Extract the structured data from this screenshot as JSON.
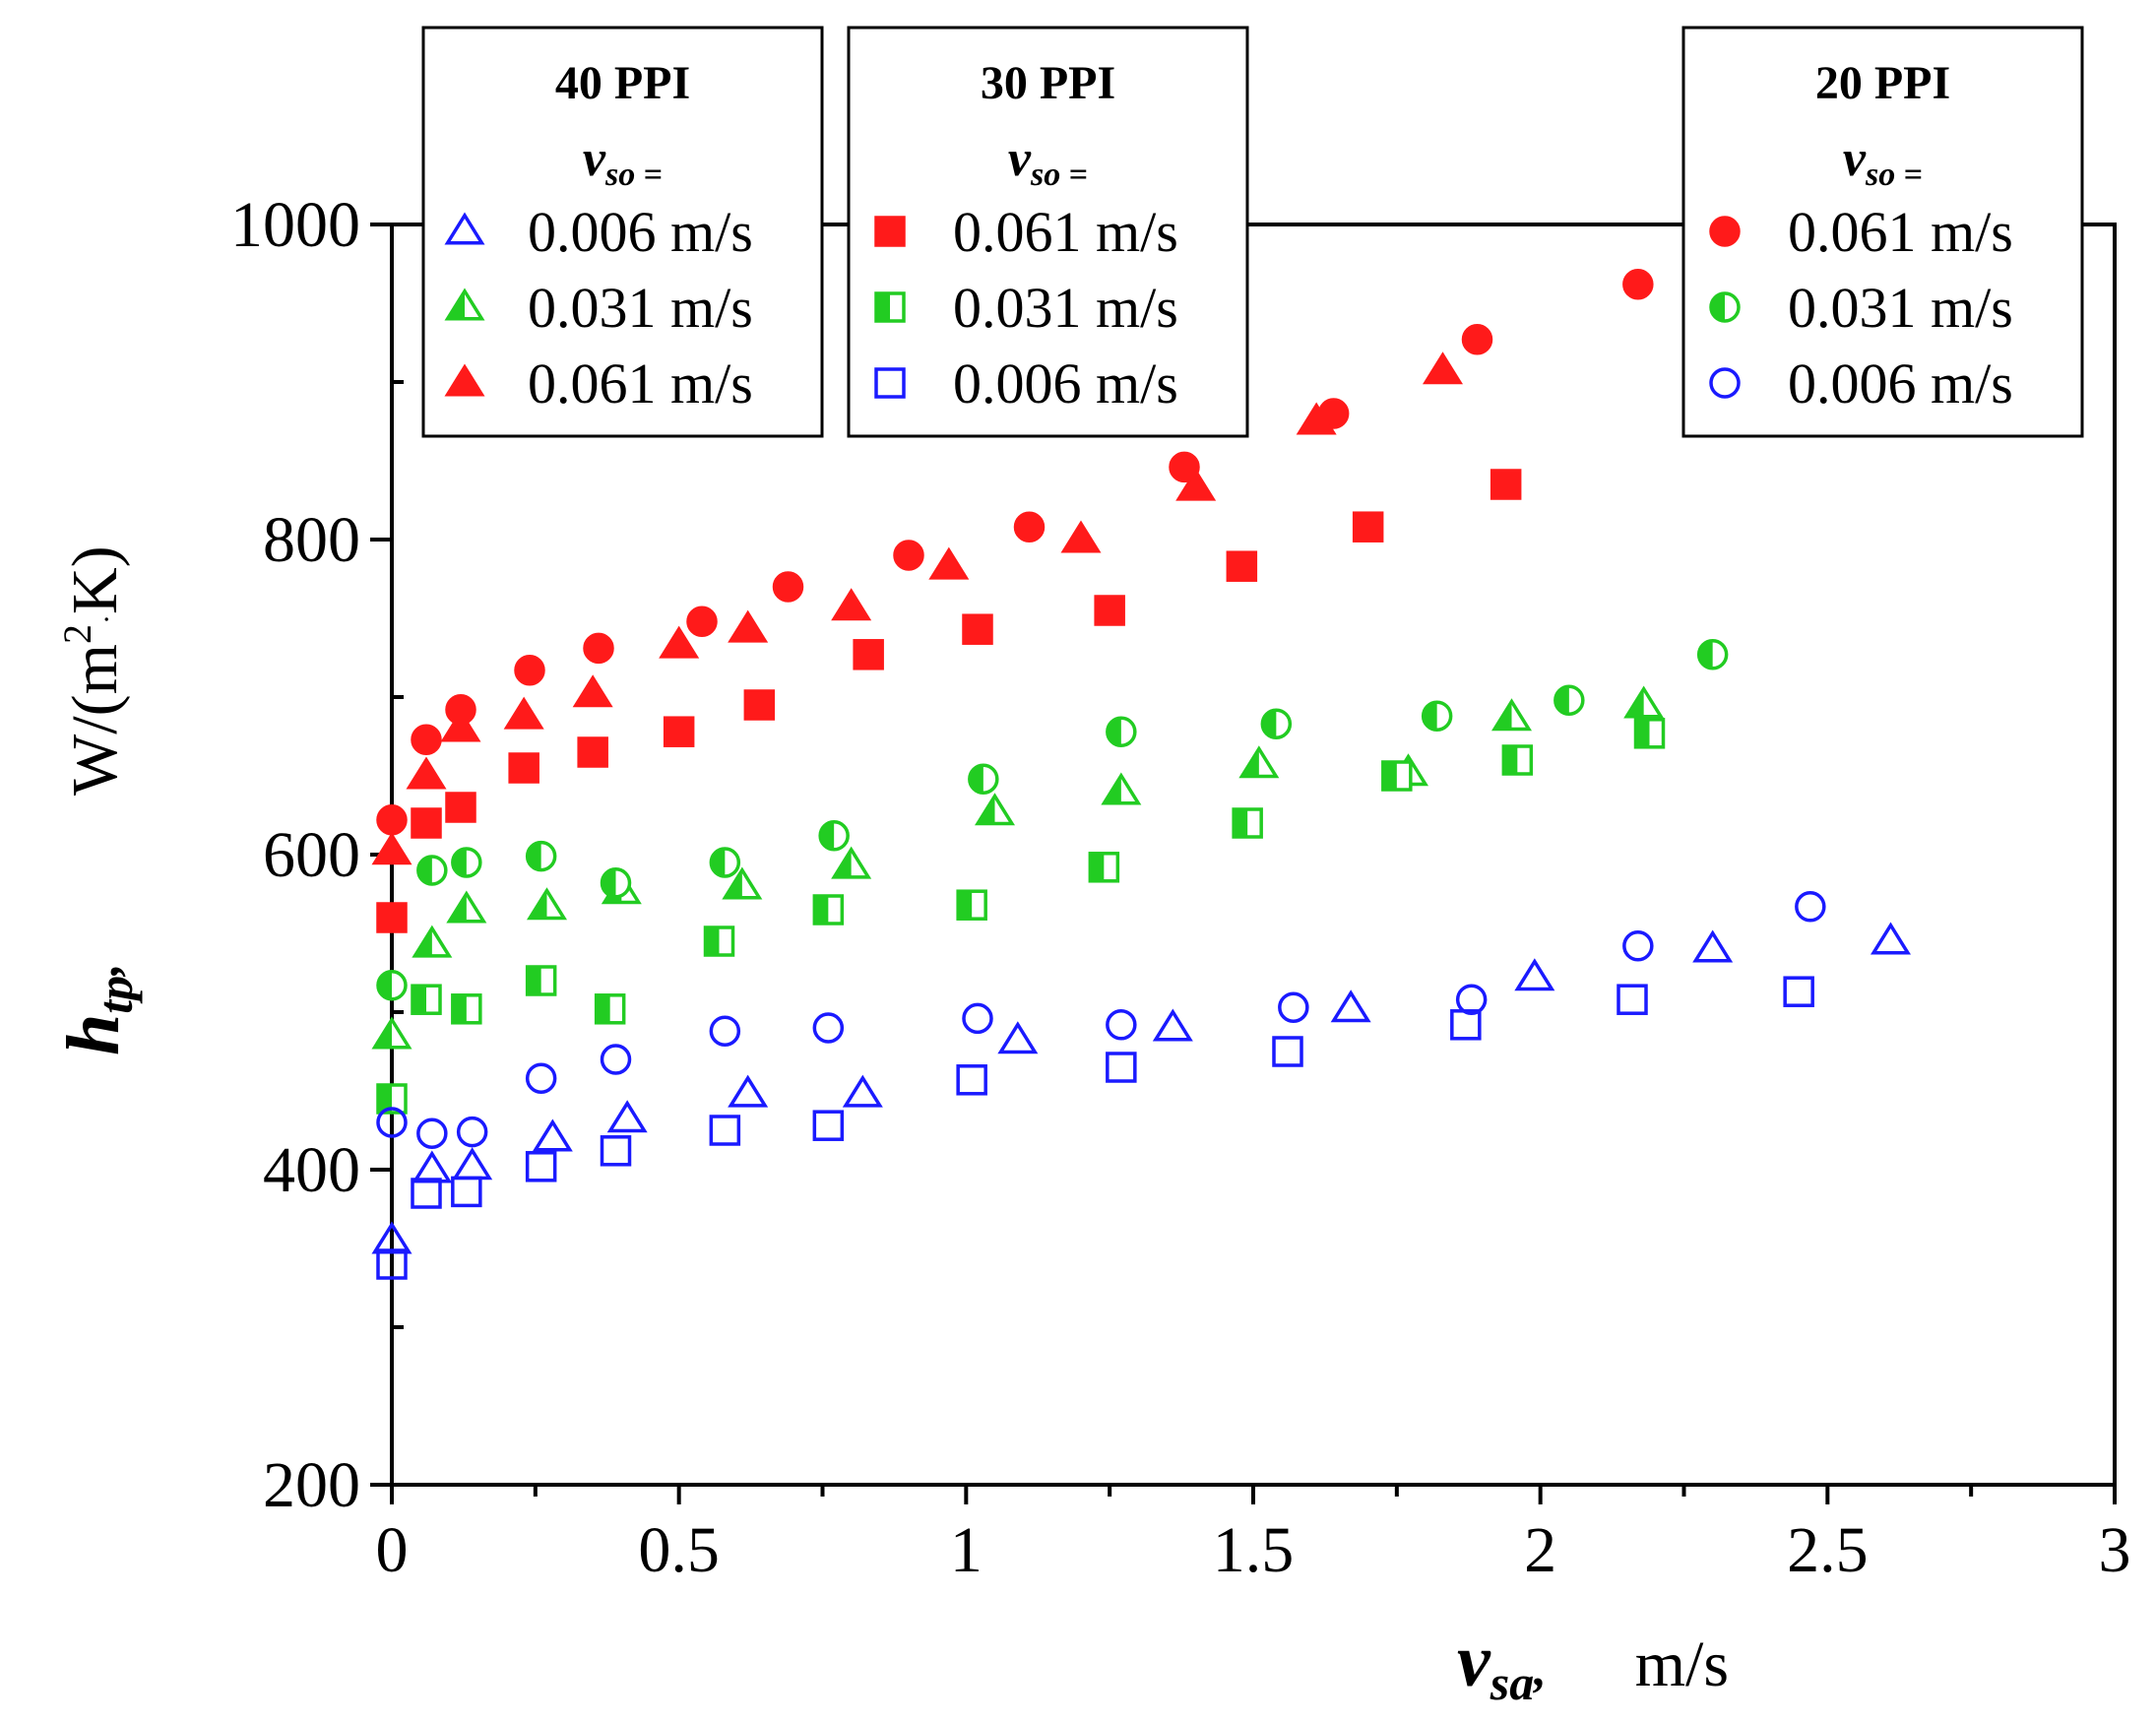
{
  "chart_data": {
    "type": "scatter",
    "xlabel": {
      "symbol": "v",
      "subscript": "sa",
      "separator": ",",
      "unit": "m/s"
    },
    "ylabel": {
      "symbol": "h",
      "subscript": "tp",
      "separator": ",",
      "unit_prefix": "W/(m",
      "unit_sup": "2",
      "unit_dot": "·",
      "unit_suffix": "K)"
    },
    "xlim": [
      0,
      3
    ],
    "ylim": [
      200,
      1000
    ],
    "xticks": [
      0,
      0.5,
      1,
      1.5,
      2,
      2.5,
      3
    ],
    "xtick_labels": [
      "0",
      "0.5",
      "1",
      "1.5",
      "2",
      "2.5",
      "3"
    ],
    "yticks": [
      200,
      400,
      600,
      800,
      1000
    ],
    "ytick_labels": [
      "200",
      "400",
      "600",
      "800",
      "1000"
    ],
    "legends": [
      {
        "id": "ppi40",
        "title": "40 PPI",
        "vso_symbol": "v",
        "vso_sub": "so",
        "vso_eq": " =",
        "series": [
          "ppi40_006",
          "ppi40_031",
          "ppi40_061"
        ]
      },
      {
        "id": "ppi30",
        "title": "30 PPI",
        "vso_symbol": "v",
        "vso_sub": "so",
        "vso_eq": " =",
        "series": [
          "ppi30_061",
          "ppi30_031",
          "ppi30_006"
        ]
      },
      {
        "id": "ppi20",
        "title": "20 PPI",
        "vso_symbol": "v",
        "vso_sub": "so",
        "vso_eq": " =",
        "series": [
          "ppi20_061",
          "ppi20_031",
          "ppi20_006"
        ]
      }
    ],
    "series": [
      {
        "id": "ppi40_006",
        "name": "0.006 m/s",
        "marker": "triangle",
        "fill": "open",
        "color": "#1a1aff",
        "x": [
          0,
          0.07,
          0.14,
          0.28,
          0.41,
          0.62,
          0.82,
          1.09,
          1.36,
          1.67,
          1.99,
          2.3,
          2.61
        ],
        "y": [
          355,
          400,
          402,
          420,
          432,
          448,
          448,
          482,
          490,
          502,
          522,
          540,
          545
        ]
      },
      {
        "id": "ppi40_031",
        "name": "0.031 m/s",
        "marker": "triangle",
        "fill": "half",
        "color": "#22cc22",
        "x": [
          0,
          0.07,
          0.13,
          0.27,
          0.4,
          0.61,
          0.8,
          1.05,
          1.27,
          1.51,
          1.77,
          1.95,
          2.18
        ],
        "y": [
          485,
          543,
          565,
          567,
          577,
          580,
          593,
          627,
          640,
          657,
          652,
          687,
          695
        ]
      },
      {
        "id": "ppi40_061",
        "name": "0.061 m/s",
        "marker": "triangle",
        "fill": "filled",
        "color": "#ff1a1a",
        "x": [
          0,
          0.06,
          0.12,
          0.23,
          0.35,
          0.5,
          0.62,
          0.8,
          0.97,
          1.2,
          1.4,
          1.61,
          1.83
        ],
        "y": [
          602,
          650,
          680,
          688,
          702,
          733,
          743,
          757,
          783,
          800,
          833,
          875,
          907
        ]
      },
      {
        "id": "ppi30_061",
        "name": "0.061 m/s",
        "marker": "square",
        "fill": "filled",
        "color": "#ff1a1a",
        "x": [
          0,
          0.06,
          0.12,
          0.23,
          0.35,
          0.5,
          0.64,
          0.83,
          1.02,
          1.25,
          1.48,
          1.7,
          1.94
        ],
        "y": [
          560,
          620,
          630,
          655,
          665,
          678,
          695,
          727,
          743,
          755,
          783,
          808,
          835
        ]
      },
      {
        "id": "ppi30_031",
        "name": "0.031 m/s",
        "marker": "square",
        "fill": "half",
        "color": "#22cc22",
        "x": [
          0,
          0.06,
          0.13,
          0.26,
          0.38,
          0.57,
          0.76,
          1.01,
          1.24,
          1.49,
          1.75,
          1.96,
          2.19
        ],
        "y": [
          445,
          508,
          502,
          520,
          502,
          545,
          565,
          568,
          592,
          620,
          650,
          660,
          677
        ]
      },
      {
        "id": "ppi30_006",
        "name": "0.006 m/s",
        "marker": "square",
        "fill": "open",
        "color": "#1a1aff",
        "x": [
          0,
          0.06,
          0.13,
          0.26,
          0.39,
          0.58,
          0.76,
          1.01,
          1.27,
          1.56,
          1.87,
          2.16,
          2.45
        ],
        "y": [
          340,
          385,
          386,
          402,
          412,
          425,
          428,
          457,
          465,
          475,
          492,
          508,
          513
        ]
      },
      {
        "id": "ppi20_061",
        "name": "0.061 m/s",
        "marker": "circle",
        "fill": "filled",
        "color": "#ff1a1a",
        "x": [
          0,
          0.06,
          0.12,
          0.24,
          0.36,
          0.54,
          0.69,
          0.9,
          1.11,
          1.38,
          1.64,
          1.89,
          2.17
        ],
        "y": [
          622,
          673,
          692,
          717,
          731,
          748,
          770,
          790,
          808,
          846,
          880,
          927,
          962
        ]
      },
      {
        "id": "ppi20_031",
        "name": "0.031 m/s",
        "marker": "circle",
        "fill": "half",
        "color": "#22cc22",
        "x": [
          0,
          0.07,
          0.13,
          0.26,
          0.39,
          0.58,
          0.77,
          1.03,
          1.27,
          1.54,
          1.82,
          2.05,
          2.3
        ],
        "y": [
          517,
          590,
          595,
          599,
          582,
          595,
          612,
          648,
          678,
          683,
          688,
          698,
          727
        ]
      },
      {
        "id": "ppi20_006",
        "name": "0.006 m/s",
        "marker": "circle",
        "fill": "open",
        "color": "#1a1aff",
        "x": [
          0,
          0.07,
          0.14,
          0.26,
          0.39,
          0.58,
          0.76,
          1.02,
          1.27,
          1.57,
          1.88,
          2.17,
          2.47
        ],
        "y": [
          430,
          423,
          424,
          458,
          470,
          488,
          490,
          496,
          492,
          503,
          508,
          542,
          567
        ]
      }
    ]
  }
}
